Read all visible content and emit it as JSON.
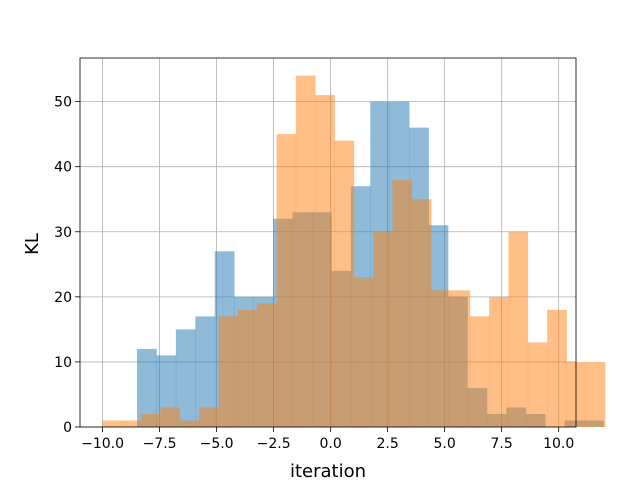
{
  "chart_data": {
    "type": "bar",
    "title": "",
    "xlabel": "iteration",
    "ylabel": "KL",
    "xlim": [
      -10.99,
      10.76
    ],
    "ylim": [
      0,
      56.7
    ],
    "grid": true,
    "x_ticks": [
      {
        "value": -10.0,
        "label": "−10.0"
      },
      {
        "value": -7.5,
        "label": "−7.5"
      },
      {
        "value": -5.0,
        "label": "−5.0"
      },
      {
        "value": -2.5,
        "label": "−2.5"
      },
      {
        "value": 0.0,
        "label": "0.0"
      },
      {
        "value": 2.5,
        "label": "2.5"
      },
      {
        "value": 5.0,
        "label": "5.0"
      },
      {
        "value": 7.5,
        "label": "7.5"
      },
      {
        "value": 10.0,
        "label": "10.0"
      }
    ],
    "y_ticks": [
      {
        "value": 0,
        "label": "0"
      },
      {
        "value": 10,
        "label": "10"
      },
      {
        "value": 20,
        "label": "20"
      },
      {
        "value": 30,
        "label": "30"
      },
      {
        "value": 40,
        "label": "40"
      },
      {
        "value": 50,
        "label": "50"
      }
    ],
    "series": [
      {
        "color": "#1f77b4",
        "alpha": 0.5,
        "bin_start": -8.49,
        "bin_width": 0.8525,
        "values": [
          12,
          11,
          15,
          17,
          27,
          20,
          20,
          32,
          33,
          33,
          24,
          37,
          50,
          50,
          46,
          31,
          20,
          6,
          2,
          3,
          2,
          0,
          1,
          1
        ]
      },
      {
        "color": "#ff7f0e",
        "alpha": 0.5,
        "bin_start": -10.0,
        "bin_width": 0.8476,
        "values": [
          1,
          1,
          2,
          3,
          1,
          3,
          17,
          18,
          19,
          45,
          54,
          51,
          44,
          23,
          30,
          38,
          35,
          21,
          21,
          17,
          20,
          30,
          13,
          18,
          10,
          10,
          0
        ]
      }
    ]
  }
}
